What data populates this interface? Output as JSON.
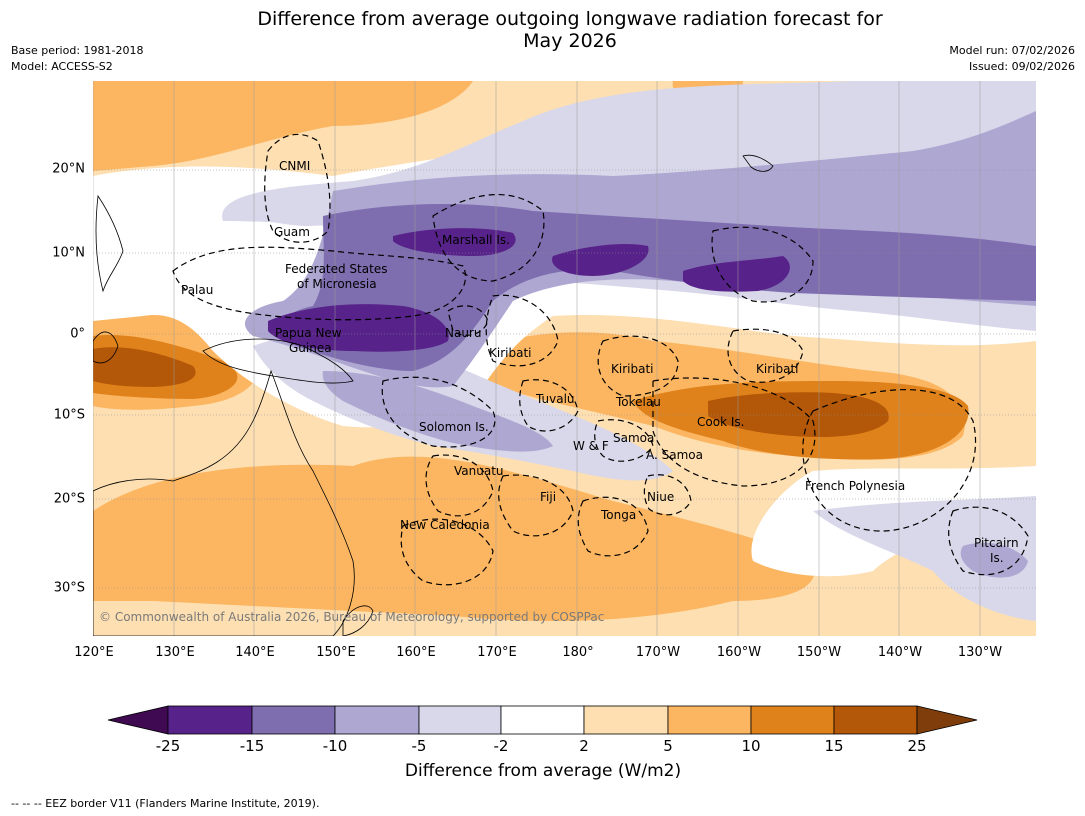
{
  "title": {
    "line1": "Difference from average outgoing longwave radiation forecast for",
    "line2": "May 2026"
  },
  "meta": {
    "base_period": "Base period: 1981-2018",
    "model": "Model: ACCESS-S2",
    "model_run": "Model run: 07/02/2026",
    "issued": "Issued: 09/02/2026"
  },
  "axes": {
    "lat_labels": [
      "20°N",
      "10°N",
      "0°",
      "10°S",
      "20°S",
      "30°S"
    ],
    "lon_labels": [
      "120°E",
      "130°E",
      "140°E",
      "150°E",
      "160°E",
      "170°E",
      "180°",
      "170°W",
      "160°W",
      "150°W",
      "140°W",
      "130°W"
    ],
    "extent": {
      "lon_min": 120,
      "lon_max": 237,
      "lat_min": -36,
      "lat_max": 30
    }
  },
  "places": {
    "cnmi": "CNMI",
    "guam": "Guam",
    "fsm1": "Federated States",
    "fsm2": "of Micronesia",
    "marshall": "Marshall Is.",
    "palau": "Palau",
    "png1": "Papua New",
    "png2": "Guinea",
    "nauru": "Nauru",
    "kiribati_w": "Kiribati",
    "kiribati_c": "Kiribati",
    "kiribati_e": "Kiribati",
    "tuvalu": "Tuvalu",
    "tokelau": "Tokelau",
    "solomon": "Solomon Is.",
    "cook": "Cook Is.",
    "samoa": "Samoa",
    "wf": "W & F",
    "asamoa": "A. Samoa",
    "vanuatu": "Vanuatu",
    "fiji": "Fiji",
    "niue": "Niue",
    "tonga": "Tonga",
    "frenchpoly": "French Polynesia",
    "newcal": "New Caledonia",
    "pitcairn1": "Pitcairn",
    "pitcairn2": "Is."
  },
  "copyright": "© Commonwealth of Australia 2026, Bureau of Meteorology, supported by COSPPac",
  "colorbar": {
    "title": "Difference from average (W/m2)",
    "ticks": [
      "-25",
      "-15",
      "-10",
      "-5",
      "-2",
      "2",
      "5",
      "10",
      "15",
      "25"
    ],
    "colors": {
      "lt_neg25": "#3f0a52",
      "neg25_neg15": "#572289",
      "neg15_neg10": "#7f6eaf",
      "neg10_neg5": "#aea7d2",
      "neg5_neg2": "#d9d8ea",
      "neg2_2": "#ffffff",
      "2_5": "#fddfb2",
      "5_10": "#fcb661",
      "10_15": "#e0821b",
      "15_25": "#b35708",
      "gt_25": "#7e3d0a"
    }
  },
  "footer": "--  --  -- EEZ border V11 (Flanders Marine Institute, 2019)."
}
